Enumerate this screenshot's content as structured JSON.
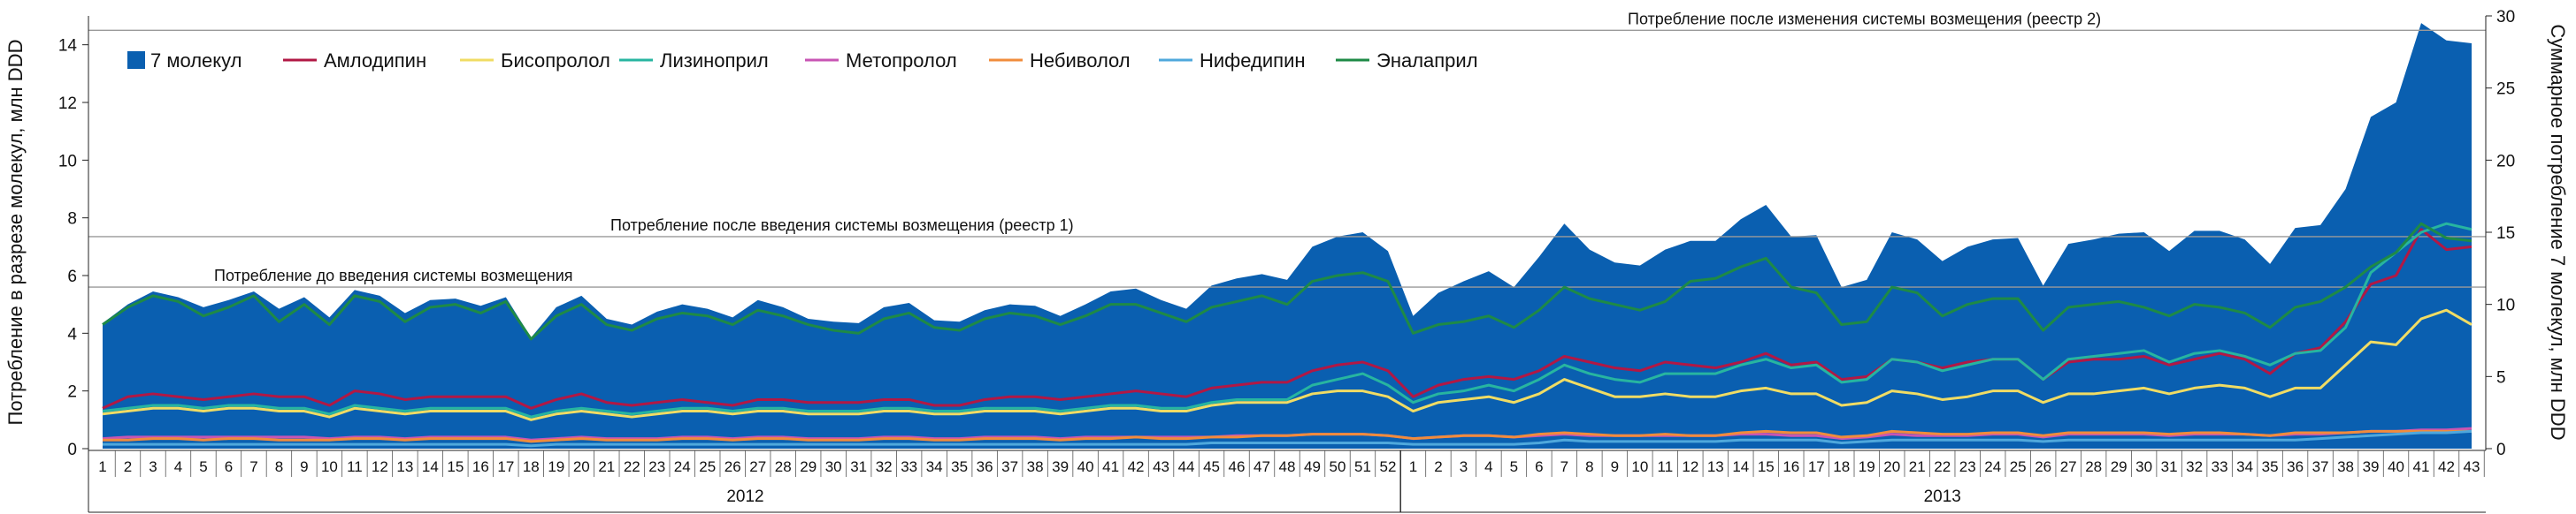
{
  "chart_data": {
    "type": "line",
    "ylabel_left": "Потребление в разрезе молекул, млн DDD",
    "ylabel_right": "Суммарное потребление 7 молекул, млн DDD",
    "ylim_left": [
      0,
      15
    ],
    "ylim_right": [
      0,
      30
    ],
    "yticks_left": [
      "0",
      "2",
      "4",
      "6",
      "8",
      "10",
      "12",
      "14"
    ],
    "yticks_right": [
      "0",
      "5",
      "10",
      "15",
      "20",
      "25",
      "30"
    ],
    "years": [
      {
        "label": "2012",
        "weeks": 52
      },
      {
        "label": "2013",
        "weeks": 43
      }
    ],
    "x_labels": [
      "1",
      "2",
      "3",
      "4",
      "5",
      "6",
      "7",
      "8",
      "9",
      "10",
      "11",
      "12",
      "13",
      "14",
      "15",
      "16",
      "17",
      "18",
      "19",
      "20",
      "21",
      "22",
      "23",
      "24",
      "25",
      "26",
      "27",
      "28",
      "29",
      "30",
      "31",
      "32",
      "33",
      "34",
      "35",
      "36",
      "37",
      "38",
      "39",
      "40",
      "41",
      "42",
      "43",
      "44",
      "45",
      "46",
      "47",
      "48",
      "49",
      "50",
      "51",
      "52",
      "1",
      "2",
      "3",
      "4",
      "5",
      "6",
      "7",
      "8",
      "9",
      "10",
      "11",
      "12",
      "13",
      "14",
      "15",
      "16",
      "17",
      "18",
      "19",
      "20",
      "21",
      "22",
      "23",
      "24",
      "25",
      "26",
      "27",
      "28",
      "29",
      "30",
      "31",
      "32",
      "33",
      "34",
      "35",
      "36",
      "37",
      "38",
      "39",
      "40",
      "41",
      "42",
      "43"
    ],
    "reference_lines": [
      {
        "label": "Потребление до введения системы возмещения",
        "value_right": 11.2
      },
      {
        "label": "Потребление после введения системы возмещения (реестр 1)",
        "value_right": 14.7
      },
      {
        "label": "Потребление после изменения системы возмещения (реестр 2)",
        "value_right": 29.0
      }
    ],
    "area_series": {
      "name": "7 молекул",
      "color": "#0a5fb0",
      "axis": "right",
      "values": [
        8.7,
        10.0,
        10.9,
        10.5,
        9.8,
        10.3,
        10.9,
        9.7,
        10.5,
        9.1,
        11.0,
        10.6,
        9.4,
        10.3,
        10.4,
        9.9,
        10.5,
        7.7,
        9.8,
        10.6,
        9.0,
        8.6,
        9.5,
        10.0,
        9.7,
        9.1,
        10.3,
        9.8,
        9.0,
        8.8,
        8.7,
        9.8,
        10.1,
        8.9,
        8.8,
        9.6,
        10.0,
        9.9,
        9.2,
        10.0,
        10.9,
        11.1,
        10.3,
        9.7,
        11.3,
        11.8,
        12.1,
        11.7,
        14.0,
        14.7,
        15.0,
        13.7,
        9.2,
        10.8,
        11.6,
        12.3,
        11.2,
        13.3,
        15.6,
        13.8,
        12.9,
        12.7,
        13.8,
        14.4,
        14.4,
        15.9,
        16.9,
        14.7,
        14.8,
        11.2,
        11.7,
        15.0,
        14.5,
        13.0,
        14.0,
        14.5,
        14.6,
        11.3,
        14.2,
        14.5,
        14.9,
        15.0,
        13.7,
        15.1,
        15.1,
        14.5,
        12.8,
        15.3,
        15.5,
        18.0,
        23.0,
        24.0,
        29.5,
        28.3,
        28.1
      ]
    },
    "series": [
      {
        "name": "Амлодипин",
        "color": "#b11845",
        "values": [
          1.4,
          1.8,
          1.9,
          1.8,
          1.7,
          1.8,
          1.9,
          1.8,
          1.8,
          1.5,
          2.0,
          1.9,
          1.7,
          1.8,
          1.8,
          1.8,
          1.8,
          1.4,
          1.7,
          1.9,
          1.6,
          1.5,
          1.6,
          1.7,
          1.6,
          1.5,
          1.7,
          1.7,
          1.6,
          1.6,
          1.6,
          1.7,
          1.7,
          1.5,
          1.5,
          1.7,
          1.8,
          1.8,
          1.7,
          1.8,
          1.9,
          2.0,
          1.9,
          1.8,
          2.1,
          2.2,
          2.3,
          2.3,
          2.7,
          2.9,
          3.0,
          2.7,
          1.8,
          2.2,
          2.4,
          2.5,
          2.4,
          2.7,
          3.2,
          3.0,
          2.8,
          2.7,
          3.0,
          2.9,
          2.8,
          3.0,
          3.3,
          2.9,
          3.0,
          2.4,
          2.5,
          3.1,
          3.0,
          2.8,
          3.0,
          3.1,
          3.1,
          2.4,
          3.0,
          3.1,
          3.1,
          3.2,
          2.9,
          3.1,
          3.3,
          3.1,
          2.6,
          3.3,
          3.5,
          4.4,
          5.7,
          6.0,
          7.6,
          6.9,
          7.0
        ]
      },
      {
        "name": "Бисопролол",
        "color": "#f0dc64",
        "values": [
          1.2,
          1.3,
          1.4,
          1.4,
          1.3,
          1.4,
          1.4,
          1.3,
          1.3,
          1.1,
          1.4,
          1.3,
          1.2,
          1.3,
          1.3,
          1.3,
          1.3,
          1.0,
          1.2,
          1.3,
          1.2,
          1.1,
          1.2,
          1.3,
          1.3,
          1.2,
          1.3,
          1.3,
          1.2,
          1.2,
          1.2,
          1.3,
          1.3,
          1.2,
          1.2,
          1.3,
          1.3,
          1.3,
          1.2,
          1.3,
          1.4,
          1.4,
          1.3,
          1.3,
          1.5,
          1.6,
          1.6,
          1.6,
          1.9,
          2.0,
          2.0,
          1.8,
          1.3,
          1.6,
          1.7,
          1.8,
          1.6,
          1.9,
          2.4,
          2.1,
          1.8,
          1.8,
          1.9,
          1.8,
          1.8,
          2.0,
          2.1,
          1.9,
          1.9,
          1.5,
          1.6,
          2.0,
          1.9,
          1.7,
          1.8,
          2.0,
          2.0,
          1.6,
          1.9,
          1.9,
          2.0,
          2.1,
          1.9,
          2.1,
          2.2,
          2.1,
          1.8,
          2.1,
          2.1,
          2.9,
          3.7,
          3.6,
          4.5,
          4.8,
          4.3
        ]
      },
      {
        "name": "Лизиноприл",
        "color": "#27b5a0",
        "values": [
          1.3,
          1.4,
          1.5,
          1.5,
          1.4,
          1.5,
          1.5,
          1.4,
          1.4,
          1.2,
          1.5,
          1.4,
          1.3,
          1.4,
          1.4,
          1.4,
          1.4,
          1.1,
          1.3,
          1.4,
          1.3,
          1.2,
          1.3,
          1.4,
          1.4,
          1.3,
          1.4,
          1.4,
          1.3,
          1.3,
          1.3,
          1.4,
          1.4,
          1.3,
          1.3,
          1.4,
          1.4,
          1.4,
          1.3,
          1.4,
          1.5,
          1.5,
          1.4,
          1.4,
          1.6,
          1.7,
          1.7,
          1.7,
          2.2,
          2.4,
          2.6,
          2.2,
          1.6,
          1.9,
          2.0,
          2.2,
          2.0,
          2.4,
          2.9,
          2.6,
          2.4,
          2.3,
          2.6,
          2.6,
          2.6,
          2.9,
          3.1,
          2.8,
          2.9,
          2.3,
          2.4,
          3.1,
          3.0,
          2.7,
          2.9,
          3.1,
          3.1,
          2.4,
          3.1,
          3.2,
          3.3,
          3.4,
          3.0,
          3.3,
          3.4,
          3.2,
          2.9,
          3.3,
          3.4,
          4.2,
          6.1,
          6.8,
          7.5,
          7.8,
          7.6
        ]
      },
      {
        "name": "Метопролол",
        "color": "#c855b4",
        "values": [
          0.35,
          0.4,
          0.4,
          0.4,
          0.4,
          0.4,
          0.4,
          0.4,
          0.4,
          0.35,
          0.4,
          0.4,
          0.35,
          0.4,
          0.4,
          0.4,
          0.4,
          0.3,
          0.35,
          0.4,
          0.35,
          0.35,
          0.35,
          0.4,
          0.4,
          0.35,
          0.4,
          0.4,
          0.35,
          0.35,
          0.35,
          0.4,
          0.4,
          0.35,
          0.35,
          0.4,
          0.4,
          0.4,
          0.35,
          0.4,
          0.4,
          0.4,
          0.4,
          0.4,
          0.4,
          0.45,
          0.45,
          0.45,
          0.5,
          0.5,
          0.5,
          0.45,
          0.35,
          0.4,
          0.45,
          0.45,
          0.4,
          0.45,
          0.5,
          0.45,
          0.45,
          0.45,
          0.45,
          0.45,
          0.45,
          0.5,
          0.5,
          0.45,
          0.45,
          0.35,
          0.4,
          0.5,
          0.45,
          0.45,
          0.45,
          0.5,
          0.5,
          0.4,
          0.5,
          0.5,
          0.5,
          0.5,
          0.45,
          0.5,
          0.5,
          0.5,
          0.45,
          0.5,
          0.5,
          0.55,
          0.6,
          0.6,
          0.65,
          0.65,
          0.7
        ]
      },
      {
        "name": "Небиволол",
        "color": "#f08c3c",
        "values": [
          0.3,
          0.3,
          0.35,
          0.35,
          0.3,
          0.35,
          0.35,
          0.3,
          0.3,
          0.3,
          0.35,
          0.35,
          0.3,
          0.35,
          0.35,
          0.35,
          0.35,
          0.25,
          0.3,
          0.35,
          0.3,
          0.3,
          0.3,
          0.35,
          0.35,
          0.3,
          0.35,
          0.35,
          0.3,
          0.3,
          0.3,
          0.35,
          0.35,
          0.3,
          0.3,
          0.35,
          0.35,
          0.35,
          0.3,
          0.35,
          0.35,
          0.4,
          0.35,
          0.35,
          0.4,
          0.4,
          0.45,
          0.45,
          0.5,
          0.5,
          0.5,
          0.45,
          0.35,
          0.4,
          0.45,
          0.45,
          0.4,
          0.5,
          0.55,
          0.5,
          0.45,
          0.45,
          0.5,
          0.45,
          0.45,
          0.55,
          0.6,
          0.55,
          0.55,
          0.4,
          0.45,
          0.6,
          0.55,
          0.5,
          0.5,
          0.55,
          0.55,
          0.45,
          0.55,
          0.55,
          0.55,
          0.55,
          0.5,
          0.55,
          0.55,
          0.5,
          0.45,
          0.55,
          0.55,
          0.55,
          0.6,
          0.6,
          0.6,
          0.6,
          0.6
        ]
      },
      {
        "name": "Нифедипин",
        "color": "#4fa8dc",
        "values": [
          0.15,
          0.15,
          0.15,
          0.15,
          0.15,
          0.15,
          0.15,
          0.15,
          0.15,
          0.15,
          0.15,
          0.15,
          0.15,
          0.15,
          0.15,
          0.15,
          0.15,
          0.1,
          0.15,
          0.15,
          0.15,
          0.15,
          0.15,
          0.15,
          0.15,
          0.15,
          0.15,
          0.15,
          0.15,
          0.15,
          0.15,
          0.15,
          0.15,
          0.15,
          0.15,
          0.15,
          0.15,
          0.15,
          0.15,
          0.15,
          0.15,
          0.15,
          0.15,
          0.15,
          0.2,
          0.2,
          0.2,
          0.2,
          0.2,
          0.2,
          0.2,
          0.2,
          0.15,
          0.15,
          0.15,
          0.15,
          0.15,
          0.2,
          0.3,
          0.25,
          0.25,
          0.25,
          0.25,
          0.25,
          0.25,
          0.3,
          0.3,
          0.3,
          0.3,
          0.2,
          0.25,
          0.3,
          0.3,
          0.3,
          0.3,
          0.3,
          0.3,
          0.25,
          0.3,
          0.3,
          0.3,
          0.3,
          0.3,
          0.3,
          0.3,
          0.3,
          0.3,
          0.3,
          0.35,
          0.4,
          0.45,
          0.5,
          0.55,
          0.55,
          0.6
        ]
      },
      {
        "name": "Эналаприл",
        "color": "#1e8a46",
        "values": [
          4.3,
          4.9,
          5.3,
          5.1,
          4.6,
          4.9,
          5.3,
          4.4,
          5.0,
          4.3,
          5.3,
          5.1,
          4.4,
          4.9,
          5.0,
          4.7,
          5.1,
          3.8,
          4.6,
          5.0,
          4.3,
          4.1,
          4.5,
          4.7,
          4.6,
          4.3,
          4.8,
          4.6,
          4.3,
          4.1,
          4.0,
          4.5,
          4.7,
          4.2,
          4.1,
          4.5,
          4.7,
          4.6,
          4.3,
          4.6,
          5.0,
          5.0,
          4.7,
          4.4,
          4.9,
          5.1,
          5.3,
          5.0,
          5.8,
          6.0,
          6.1,
          5.8,
          4.0,
          4.3,
          4.4,
          4.6,
          4.2,
          4.8,
          5.6,
          5.2,
          5.0,
          4.8,
          5.1,
          5.8,
          5.9,
          6.3,
          6.6,
          5.6,
          5.4,
          4.3,
          4.4,
          5.6,
          5.4,
          4.6,
          5.0,
          5.2,
          5.2,
          4.1,
          4.9,
          5.0,
          5.1,
          4.9,
          4.6,
          5.0,
          4.9,
          4.7,
          4.2,
          4.9,
          5.1,
          5.6,
          6.3,
          6.8,
          7.8,
          7.3,
          7.2
        ]
      }
    ],
    "legend_placement": "top-left",
    "grid": false
  }
}
